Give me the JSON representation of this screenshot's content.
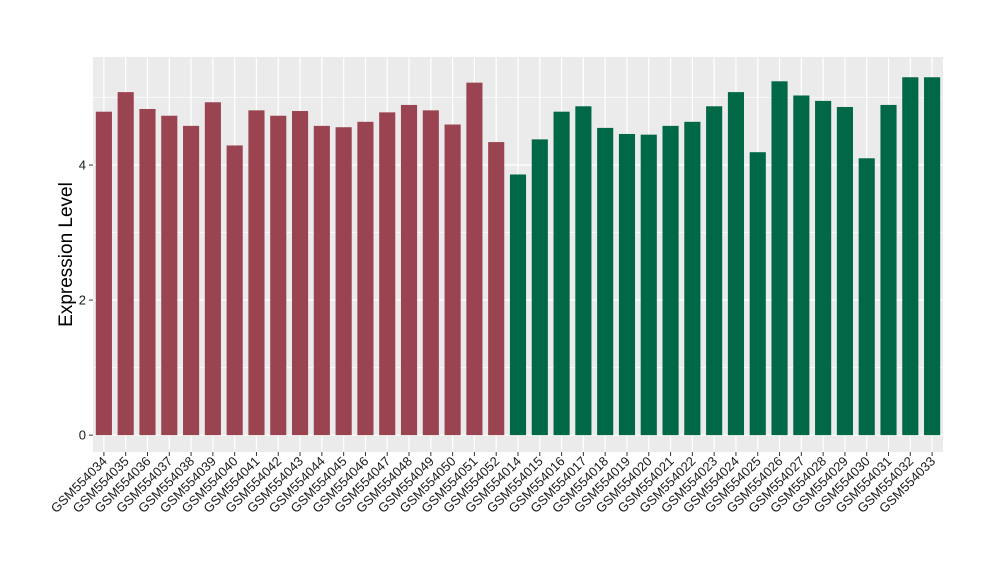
{
  "chart_data": {
    "type": "bar",
    "title": "",
    "xlabel": "",
    "ylabel": "Expression Level",
    "ylim": [
      -0.25,
      5.6
    ],
    "yticks": [
      0,
      2,
      4
    ],
    "grid": true,
    "legend": "none",
    "colors": {
      "panel": "#ebebeb",
      "grid": "#ffffff",
      "group_a": "#9a4452",
      "group_b": "#006846"
    },
    "categories": [
      "GSM554034",
      "GSM554035",
      "GSM554036",
      "GSM554037",
      "GSM554038",
      "GSM554039",
      "GSM554040",
      "GSM554041",
      "GSM554042",
      "GSM554043",
      "GSM554044",
      "GSM554045",
      "GSM554046",
      "GSM554047",
      "GSM554048",
      "GSM554049",
      "GSM554050",
      "GSM554051",
      "GSM554052",
      "GSM554014",
      "GSM554015",
      "GSM554016",
      "GSM554017",
      "GSM554018",
      "GSM554019",
      "GSM554020",
      "GSM554021",
      "GSM554022",
      "GSM554023",
      "GSM554024",
      "GSM554025",
      "GSM554026",
      "GSM554027",
      "GSM554028",
      "GSM554029",
      "GSM554030",
      "GSM554031",
      "GSM554032",
      "GSM554033"
    ],
    "values": [
      4.79,
      5.08,
      4.83,
      4.73,
      4.58,
      4.93,
      4.29,
      4.81,
      4.73,
      4.8,
      4.58,
      4.56,
      4.64,
      4.78,
      4.89,
      4.81,
      4.6,
      5.22,
      4.34,
      3.86,
      4.38,
      4.79,
      4.87,
      4.55,
      4.46,
      4.45,
      4.58,
      4.64,
      4.87,
      5.08,
      4.19,
      5.24,
      5.03,
      4.95,
      4.86,
      4.1,
      4.89,
      5.3,
      5.3
    ],
    "group_sizes": [
      19,
      20
    ]
  }
}
